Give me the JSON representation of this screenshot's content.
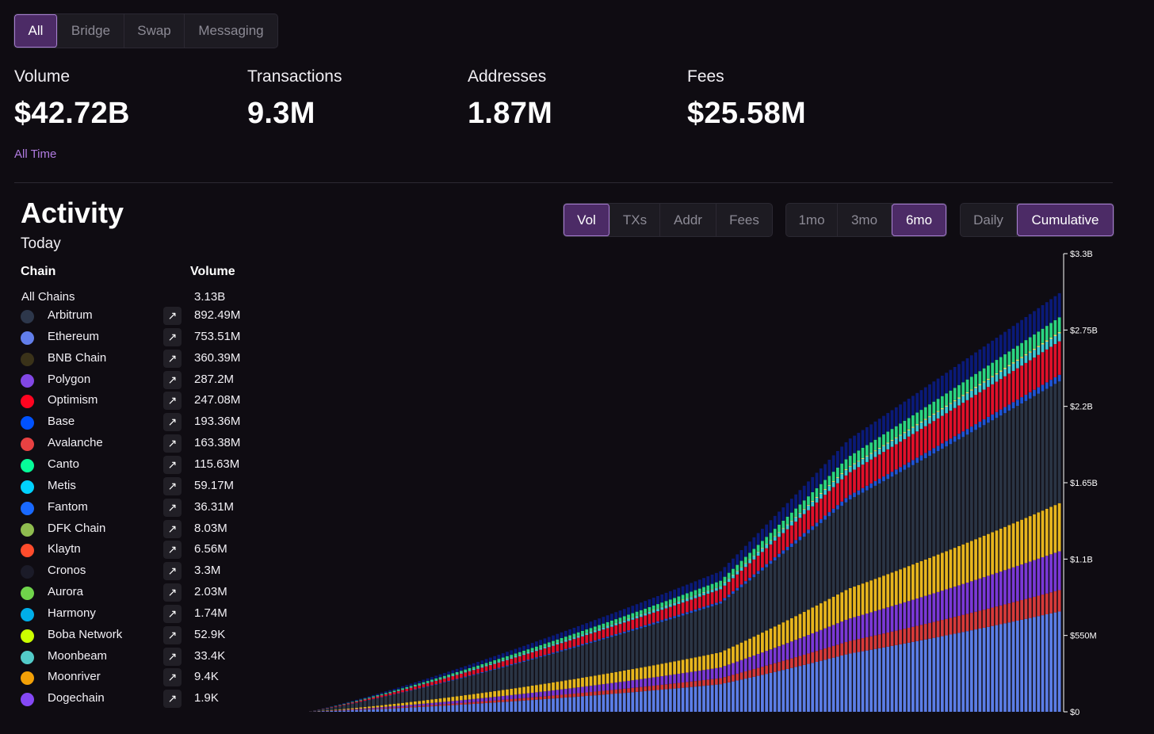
{
  "top_tabs": [
    "All",
    "Bridge",
    "Swap",
    "Messaging"
  ],
  "stats": [
    {
      "label": "Volume",
      "value": "$42.72B"
    },
    {
      "label": "Transactions",
      "value": "9.3M"
    },
    {
      "label": "Addresses",
      "value": "1.87M"
    },
    {
      "label": "Fees",
      "value": "$25.58M"
    }
  ],
  "all_time_label": "All Time",
  "activity": {
    "title": "Activity",
    "subtitle": "Today",
    "col_chain": "Chain",
    "col_volume": "Volume",
    "all_chains": {
      "name": "All Chains",
      "volume": "3.13B"
    },
    "arrow_glyph": "↗",
    "chains": [
      {
        "name": "Arbitrum",
        "volume": "892.49M",
        "icon": "arbitrum-icon",
        "color": "#2d374b"
      },
      {
        "name": "Ethereum",
        "volume": "753.51M",
        "icon": "ethereum-icon",
        "color": "#627eea"
      },
      {
        "name": "BNB Chain",
        "volume": "360.39M",
        "icon": "bnb-icon",
        "color": "#3a3219"
      },
      {
        "name": "Polygon",
        "volume": "287.2M",
        "icon": "polygon-icon",
        "color": "#8247e5"
      },
      {
        "name": "Optimism",
        "volume": "247.08M",
        "icon": "optimism-icon",
        "color": "#ff0420"
      },
      {
        "name": "Base",
        "volume": "193.36M",
        "icon": "base-icon",
        "color": "#0052ff"
      },
      {
        "name": "Avalanche",
        "volume": "163.38M",
        "icon": "avalanche-icon",
        "color": "#e84142"
      },
      {
        "name": "Canto",
        "volume": "115.63M",
        "icon": "canto-icon",
        "color": "#06fc99"
      },
      {
        "name": "Metis",
        "volume": "59.17M",
        "icon": "metis-icon",
        "color": "#00d2ff"
      },
      {
        "name": "Fantom",
        "volume": "36.31M",
        "icon": "fantom-icon",
        "color": "#1969ff"
      },
      {
        "name": "DFK Chain",
        "volume": "8.03M",
        "icon": "dfk-icon",
        "color": "#8fbc4f"
      },
      {
        "name": "Klaytn",
        "volume": "6.56M",
        "icon": "klaytn-icon",
        "color": "#ff4c2c"
      },
      {
        "name": "Cronos",
        "volume": "3.3M",
        "icon": "cronos-icon",
        "color": "#1b1b28"
      },
      {
        "name": "Aurora",
        "volume": "2.03M",
        "icon": "aurora-icon",
        "color": "#70d44b"
      },
      {
        "name": "Harmony",
        "volume": "1.74M",
        "icon": "harmony-icon",
        "color": "#00aee9"
      },
      {
        "name": "Boba Network",
        "volume": "52.9K",
        "icon": "boba-icon",
        "color": "#cbff00"
      },
      {
        "name": "Moonbeam",
        "volume": "33.4K",
        "icon": "moonbeam-icon",
        "color": "#53cbc9"
      },
      {
        "name": "Moonriver",
        "volume": "9.4K",
        "icon": "moonriver-icon",
        "color": "#f2a007"
      },
      {
        "name": "Dogechain",
        "volume": "1.9K",
        "icon": "dogechain-icon",
        "color": "#8548f5"
      }
    ]
  },
  "metric_tabs": [
    "Vol",
    "TXs",
    "Addr",
    "Fees"
  ],
  "range_tabs": [
    "1mo",
    "3mo",
    "6mo"
  ],
  "mode_tabs": [
    "Daily",
    "Cumulative"
  ],
  "colors": {
    "accent": "#4c2b66",
    "accent_border": "#a77fd0",
    "link": "#b07be0",
    "background": "#0f0c12"
  },
  "chart_data": {
    "type": "bar",
    "stacked": true,
    "cumulative": true,
    "ylim": [
      0,
      3.3
    ],
    "y_unit": "B",
    "y_ticks": [
      "$0",
      "$550M",
      "$1.1B",
      "$1.65B",
      "$2.2B",
      "$2.75B",
      "$3.3B"
    ],
    "y_tick_values": [
      0,
      0.55,
      1.1,
      1.65,
      2.2,
      2.75,
      3.3
    ],
    "bar_count": 180,
    "series": [
      {
        "color": "#5b7de6",
        "final_value": 0.75
      },
      {
        "color": "#d63a3a",
        "final_value": 0.16
      },
      {
        "color": "#7a38d6",
        "final_value": 0.29
      },
      {
        "color": "#e6b51e",
        "final_value": 0.36
      },
      {
        "color": "#2a3444",
        "final_value": 0.91
      },
      {
        "color": "#1f55d4",
        "final_value": 0.05
      },
      {
        "color": "#e0102a",
        "final_value": 0.25
      },
      {
        "color": "#3ec8d6",
        "final_value": 0.06
      },
      {
        "color": "#f0e060",
        "final_value": 0.01
      },
      {
        "color": "#2ad482",
        "final_value": 0.11
      },
      {
        "color": "#0a1a78",
        "final_value": 0.18
      }
    ]
  }
}
